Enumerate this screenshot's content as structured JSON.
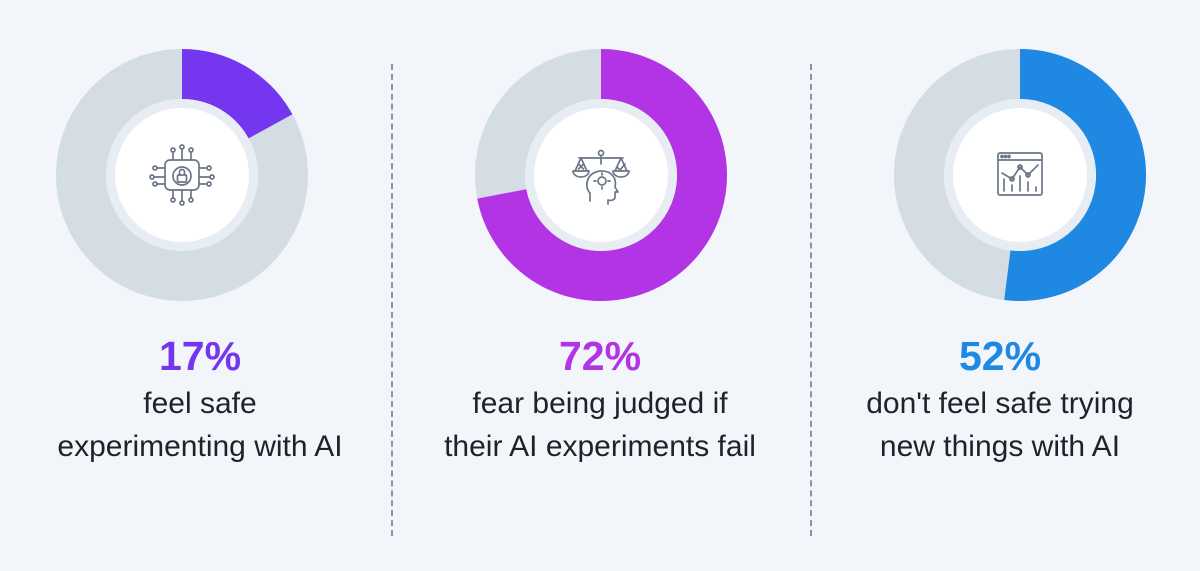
{
  "chart_data": [
    {
      "type": "pie",
      "value": 17,
      "label": "17%",
      "caption_lines": [
        "feel safe",
        "experimenting with AI"
      ],
      "icon": "ai-security-lock-icon",
      "accent_color": "#7436ee",
      "track_color": "#d5dde4"
    },
    {
      "type": "pie",
      "value": 72,
      "label": "72%",
      "caption_lines": [
        "fear being judged if",
        "their AI experiments fail"
      ],
      "icon": "ethics-judgment-scale-icon",
      "accent_color": "#b234e5",
      "track_color": "#d5dde4"
    },
    {
      "type": "pie",
      "value": 52,
      "label": "52%",
      "caption_lines": [
        "don't feel safe trying",
        "new things with AI"
      ],
      "icon": "analytics-dashboard-icon",
      "accent_color": "#1e88e3",
      "track_color": "#d5dde4"
    }
  ]
}
